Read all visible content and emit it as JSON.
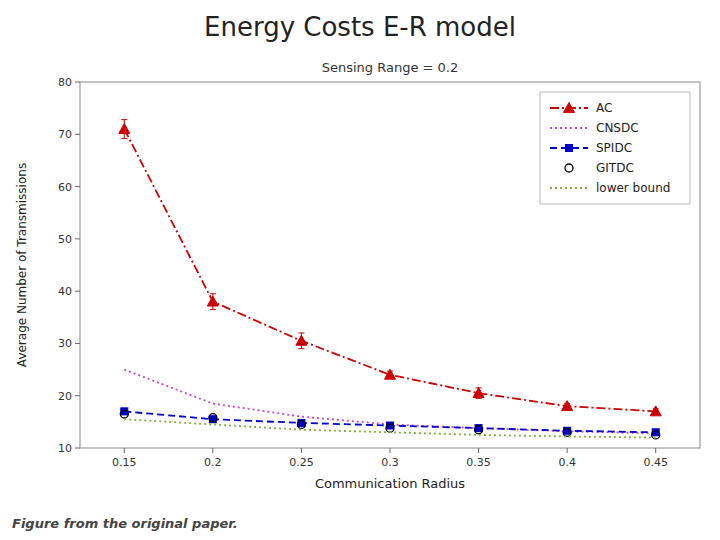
{
  "chart_data": {
    "type": "line",
    "title": "Energy Costs E-R model",
    "subtitle": "Sensing Range = 0.2",
    "caption": "Figure from the original paper.",
    "x_label": "Communication Radius",
    "y_label": "Average Number of Transmissions",
    "x": [
      0.15,
      0.2,
      0.25,
      0.3,
      0.35,
      0.4,
      0.45
    ],
    "series": [
      {
        "name": "AC",
        "color": "#cc0000",
        "line_style": "dashdot",
        "marker": "triangle",
        "values": [
          71.0,
          38.0,
          30.5,
          24.0,
          20.5,
          18.0,
          17.0
        ],
        "errors": [
          1.8,
          1.5,
          1.5,
          0.7,
          1.0,
          0.5,
          0.5
        ]
      },
      {
        "name": "CNSDC",
        "color": "#cc44cc",
        "line_style": "dotted",
        "marker": "none",
        "values": [
          25.0,
          18.5,
          16.0,
          14.5,
          13.8,
          13.2,
          12.8
        ]
      },
      {
        "name": "SPIDC",
        "color": "#0000cc",
        "line_style": "dashed",
        "marker": "square",
        "values": [
          17.0,
          15.5,
          14.8,
          14.3,
          13.8,
          13.3,
          13.0
        ],
        "errors": [
          0.6,
          0.5,
          0.5,
          0.4,
          0.3,
          0.3,
          0.2
        ]
      },
      {
        "name": "GITDC",
        "color": "#000000",
        "line_style": "none",
        "marker": "circle-open",
        "values": [
          16.5,
          15.8,
          14.5,
          13.8,
          13.5,
          13.0,
          12.5
        ]
      },
      {
        "name": "lower bound",
        "color": "#88aa44",
        "line_style": "dotted",
        "marker": "none",
        "values": [
          15.5,
          14.5,
          13.5,
          13.0,
          12.5,
          12.2,
          12.0
        ]
      }
    ],
    "xlim": [
      0.125,
      0.475
    ],
    "ylim": [
      10,
      80
    ],
    "xticks": [
      0.15,
      0.2,
      0.25,
      0.3,
      0.35,
      0.4,
      0.45
    ],
    "yticks": [
      10,
      20,
      30,
      40,
      50,
      60,
      70,
      80
    ],
    "legend": "upper-right",
    "grid": false
  }
}
